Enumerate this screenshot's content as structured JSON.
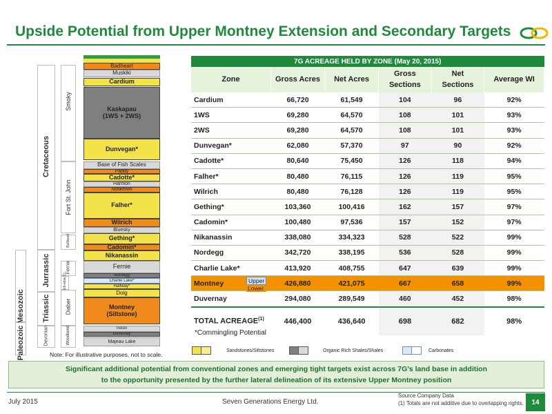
{
  "header": {
    "title": "Upside Potential from Upper Montney Extension and Secondary Targets"
  },
  "colors": {
    "accent": "#1f8a3b",
    "highlight": "#f39200",
    "sandstone": "#f3e24a"
  },
  "stratigraphy": {
    "eras": [
      "Mesozoic",
      "Paleozoic"
    ],
    "periods": [
      "Cretaceous",
      "Jurrassic",
      "Triassic",
      "Devonian"
    ],
    "groups": [
      "Smoky",
      "Fort St. John",
      "Bullhead",
      "Fernie",
      "Sch-aiow Cr.",
      "Diaber",
      "Woodbend"
    ],
    "formations": [
      {
        "label": "Badheart"
      },
      {
        "label": "Muskiki"
      },
      {
        "label": "Cardium"
      },
      {
        "label": "Kaskapau\n(1WS + 2WS)"
      },
      {
        "label": "Dunvegan*"
      },
      {
        "label": "Base of Fish Scales"
      },
      {
        "label": "Paddy"
      },
      {
        "label": "Cadotte*"
      },
      {
        "label": "Harmon"
      },
      {
        "label": "Notikewin"
      },
      {
        "label": "Falher*"
      },
      {
        "label": "Wilrich"
      },
      {
        "label": "Bluesky"
      },
      {
        "label": "Gething*"
      },
      {
        "label": "Cadomin*"
      },
      {
        "label": "Nikanassin"
      },
      {
        "label": "Fernie"
      },
      {
        "label": "Nordegg"
      },
      {
        "label": "Charlie Lake*"
      },
      {
        "label": "Halfway*"
      },
      {
        "label": "Doig"
      },
      {
        "label": "Montney\n(Siltstone)"
      },
      {
        "label": "Ireton"
      },
      {
        "label": "Duvernay"
      },
      {
        "label": "Majeau Lake"
      }
    ],
    "note": "Note: For illustrative purposes, not to scale."
  },
  "table": {
    "caption": "7G ACREAGE HELD BY ZONE (May 20, 2015)",
    "columns": [
      "Zone",
      "Gross Acres",
      "Net Acres",
      "Gross\nSections",
      "Net\nSections",
      "Average WI"
    ],
    "rows": [
      {
        "zone": "Cardium",
        "gross_acres": "66,720",
        "net_acres": "61,549",
        "gross_sections": "104",
        "net_sections": "96",
        "avg_wi": "92%"
      },
      {
        "zone": "1WS",
        "gross_acres": "69,280",
        "net_acres": "64,570",
        "gross_sections": "108",
        "net_sections": "101",
        "avg_wi": "93%"
      },
      {
        "zone": "2WS",
        "gross_acres": "69,280",
        "net_acres": "64,570",
        "gross_sections": "108",
        "net_sections": "101",
        "avg_wi": "93%"
      },
      {
        "zone": "Dunvegan*",
        "gross_acres": "62,080",
        "net_acres": "57,370",
        "gross_sections": "97",
        "net_sections": "90",
        "avg_wi": "92%"
      },
      {
        "zone": "Cadotte*",
        "gross_acres": "80,640",
        "net_acres": "75,450",
        "gross_sections": "126",
        "net_sections": "118",
        "avg_wi": "94%"
      },
      {
        "zone": "Falher*",
        "gross_acres": "80,480",
        "net_acres": "76,115",
        "gross_sections": "126",
        "net_sections": "119",
        "avg_wi": "95%"
      },
      {
        "zone": "Wilrich",
        "gross_acres": "80,480",
        "net_acres": "76,128",
        "gross_sections": "126",
        "net_sections": "119",
        "avg_wi": "95%"
      },
      {
        "zone": "Gething*",
        "gross_acres": "103,360",
        "net_acres": "100,416",
        "gross_sections": "162",
        "net_sections": "157",
        "avg_wi": "97%"
      },
      {
        "zone": "Cadomin*",
        "gross_acres": "100,480",
        "net_acres": "97,536",
        "gross_sections": "157",
        "net_sections": "152",
        "avg_wi": "97%"
      },
      {
        "zone": "Nikanassin",
        "gross_acres": "338,080",
        "net_acres": "334,323",
        "gross_sections": "528",
        "net_sections": "522",
        "avg_wi": "99%"
      },
      {
        "zone": "Nordegg",
        "gross_acres": "342,720",
        "net_acres": "338,195",
        "gross_sections": "536",
        "net_sections": "528",
        "avg_wi": "99%"
      },
      {
        "zone": "Charlie Lake*",
        "gross_acres": "413,920",
        "net_acres": "408,755",
        "gross_sections": "647",
        "net_sections": "639",
        "avg_wi": "99%"
      },
      {
        "zone": "Montney",
        "gross_acres": "426,880",
        "net_acres": "421,075",
        "gross_sections": "667",
        "net_sections": "658",
        "avg_wi": "99%",
        "upper": "Upper",
        "lower": "Lower"
      },
      {
        "zone": "Duvernay",
        "gross_acres": "294,080",
        "net_acres": "289,549",
        "gross_sections": "460",
        "net_sections": "452",
        "avg_wi": "98%"
      }
    ],
    "total": {
      "label": "TOTAL ACREAGE",
      "footnote_mark": "(1)",
      "gross_acres": "446,400",
      "net_acres": "436,640",
      "gross_sections": "698",
      "net_sections": "682",
      "avg_wi": "98%"
    },
    "commingling_note": "*Commingling Potential"
  },
  "legend": {
    "sandstones": "Sandstones/Siltstones",
    "shales": "Organic Rich Shales/Shales",
    "carbonates": "Carbonates"
  },
  "banner": {
    "line1": "Significant additional potential from conventional zones and emerging tight targets exist across 7G's land base in addition",
    "line2": "to the opportunity presented by the further lateral delineation of its extensive Upper Montney position"
  },
  "footer": {
    "date": "July 2015",
    "company": "Seven Generations Energy Ltd.",
    "source": "Source Company Data",
    "footnote": "(1)     Totals are not additive due to overlapping rights.",
    "page": "14"
  }
}
